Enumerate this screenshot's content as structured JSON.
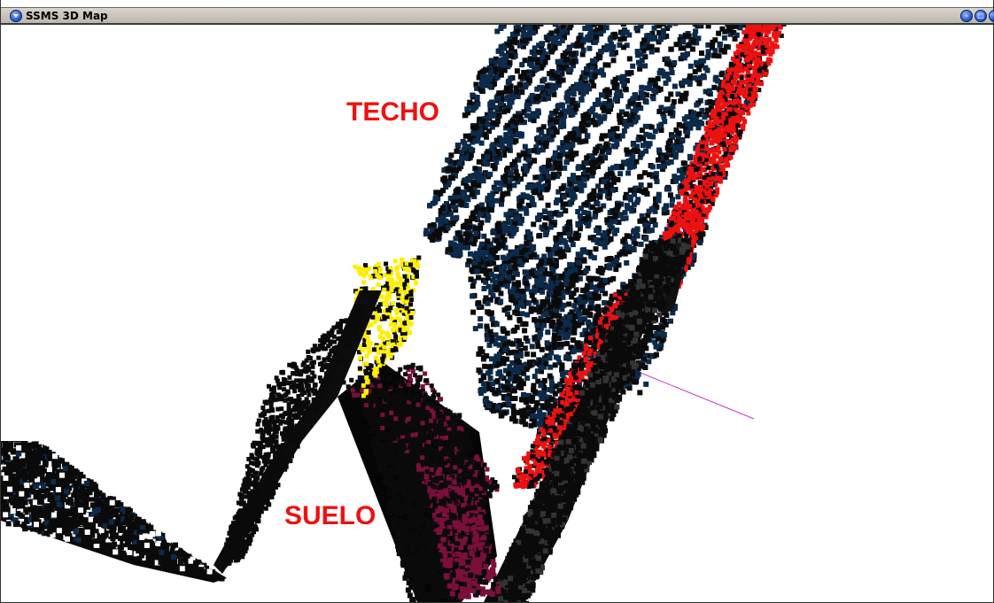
{
  "window": {
    "title": "SSMS 3D Map",
    "buttons": [
      "minimize",
      "maximize",
      "close"
    ]
  },
  "map": {
    "labels": {
      "ceiling": "TECHO",
      "floor": "SUELO"
    },
    "colors": {
      "ceiling_points": "#0c2a4a",
      "wall_points": "#ee1111",
      "floor_points": "#7a0f3c",
      "yellow_points": "#ffee00",
      "dark_points": "#0a0a0a",
      "axis_line": "#c040c0"
    }
  }
}
